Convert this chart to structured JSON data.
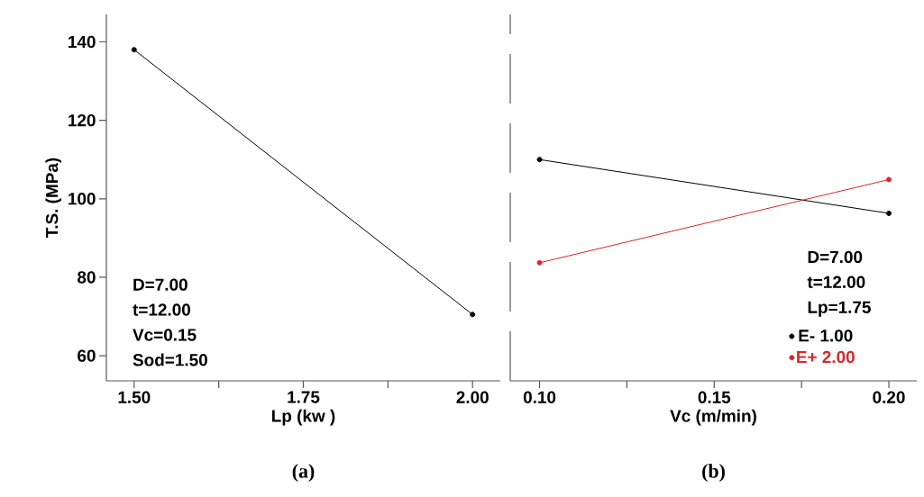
{
  "chart_data": [
    {
      "type": "line",
      "xlabel": "Lp (kw )",
      "ylabel": "T.S. (MPa)",
      "x": [
        1.5,
        2.0
      ],
      "series": [
        {
          "color": "#000000",
          "values": [
            138,
            70.5
          ]
        }
      ],
      "xlim": [
        1.459,
        2.041
      ],
      "ylim": [
        53.6,
        147
      ],
      "xticks": [
        {
          "value": 1.5,
          "label": "1.50"
        },
        {
          "value": 1.625,
          "label": null
        },
        {
          "value": 1.75,
          "label": "1.75"
        },
        {
          "value": 1.875,
          "label": null
        },
        {
          "value": 2.0,
          "label": "2.00"
        }
      ],
      "yticks": [
        60,
        80,
        100,
        120,
        140
      ],
      "marker": "circle",
      "annotations": [
        "D=7.00",
        "t=12.00",
        "Vc=0.15",
        "Sod=1.50",
        "(a)"
      ]
    },
    {
      "type": "line",
      "xlabel": "Vc (m/min)",
      "x": [
        0.1,
        0.2
      ],
      "series": [
        {
          "name": "E- 1.00",
          "color": "#000000",
          "values": [
            110,
            96.3
          ]
        },
        {
          "name": "E+ 2.00",
          "color": "#d42a2a",
          "values": [
            83.7,
            104.9
          ]
        }
      ],
      "xlim": [
        0.0916,
        0.208
      ],
      "ylim": [
        53.6,
        147
      ],
      "xticks": [
        {
          "value": 0.1,
          "label": "0.10"
        },
        {
          "value": 0.125,
          "label": null
        },
        {
          "value": 0.15,
          "label": "0.15"
        },
        {
          "value": 0.175,
          "label": null
        },
        {
          "value": 0.2,
          "label": "0.20"
        }
      ],
      "tick_labels": "x",
      "marker": "circle",
      "legend": "bottom right",
      "annotations": [
        "D=7.00",
        "t=12.00",
        "Lp=1.75",
        "(b)"
      ]
    }
  ]
}
